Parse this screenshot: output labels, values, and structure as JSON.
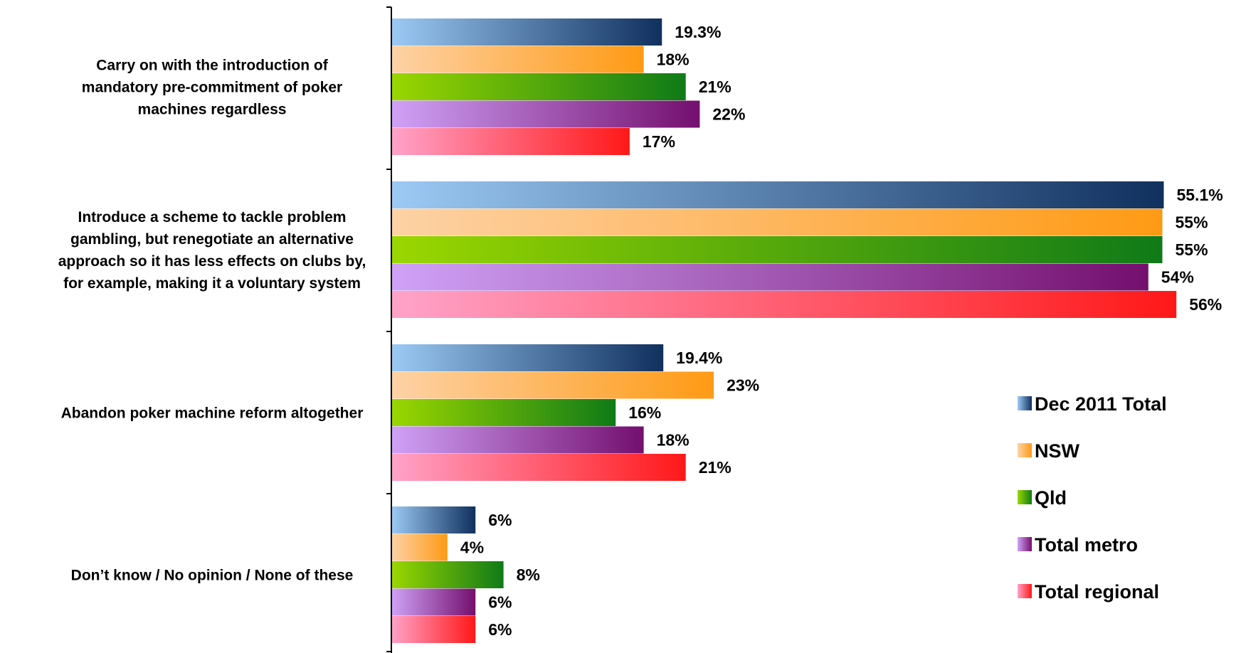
{
  "chart_data": {
    "type": "bar",
    "orientation": "horizontal",
    "title": "",
    "xlabel": "",
    "ylabel": "",
    "xlim": [
      0,
      56
    ],
    "grid": false,
    "legend_position": "right",
    "categories": [
      [
        "Carry on with the introduction of",
        "mandatory pre-commitment of poker",
        "machines regardless"
      ],
      [
        "Introduce a scheme to tackle problem",
        "gambling, but renegotiate an alternative",
        "approach so it has less effects on clubs by,",
        "for example, making it a voluntary system"
      ],
      [
        "Abandon poker machine reform altogether"
      ],
      [
        "Don’t know / No opinion / None of these"
      ]
    ],
    "series": [
      {
        "name": "Dec 2011 Total",
        "colors": [
          "#9ccaf5",
          "#10305e"
        ],
        "values": [
          19.3,
          55.1,
          19.4,
          6
        ],
        "labels": [
          "19.3%",
          "55.1%",
          "19.4%",
          "6%"
        ]
      },
      {
        "name": "NSW",
        "colors": [
          "#fdd2a6",
          "#ff9a14"
        ],
        "values": [
          18,
          55,
          23,
          4
        ],
        "labels": [
          "18%",
          "55%",
          "23%",
          "4%"
        ]
      },
      {
        "name": "Qld",
        "colors": [
          "#9bd700",
          "#0f7a17"
        ],
        "values": [
          21,
          55,
          16,
          8
        ],
        "labels": [
          "21%",
          "55%",
          "16%",
          "8%"
        ]
      },
      {
        "name": "Total metro",
        "colors": [
          "#cfa2f7",
          "#740f6e"
        ],
        "values": [
          22,
          54,
          18,
          6
        ],
        "labels": [
          "22%",
          "54%",
          "18%",
          "6%"
        ]
      },
      {
        "name": "Total regional",
        "colors": [
          "#ffa3c9",
          "#ff1818"
        ],
        "values": [
          17,
          56,
          21,
          6
        ],
        "labels": [
          "17%",
          "56%",
          "21%",
          "6%"
        ]
      }
    ]
  }
}
